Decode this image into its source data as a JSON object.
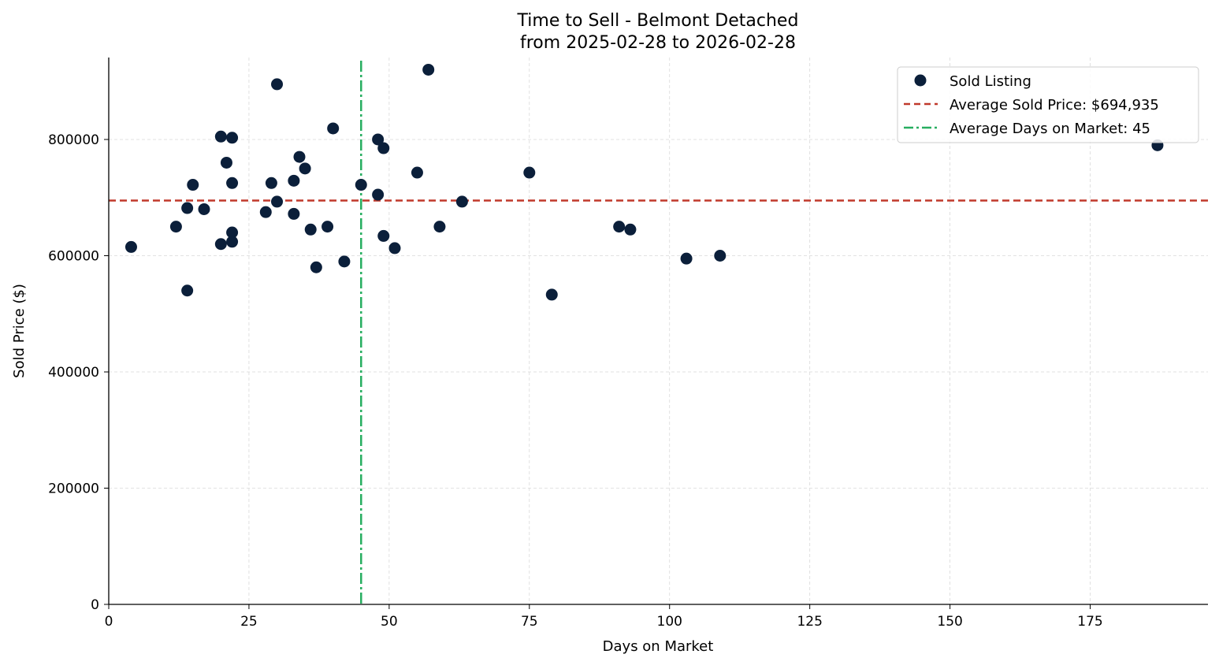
{
  "chart_data": {
    "type": "scatter",
    "title": "Time to Sell - Belmont Detached",
    "subtitle": "from 2025-02-28 to 2026-02-28",
    "xlabel": "Days on Market",
    "ylabel": "Sold Price ($)",
    "xlim": [
      0,
      196
    ],
    "ylim": [
      0,
      941000
    ],
    "xticks": [
      0,
      25,
      50,
      75,
      100,
      125,
      150,
      175
    ],
    "yticks": [
      0,
      200000,
      400000,
      600000,
      800000
    ],
    "grid": true,
    "legend_position": "top-right",
    "colors": {
      "points": "#0b1f3a",
      "avg_price": "#c0392b",
      "avg_days": "#27ae60"
    },
    "series": [
      {
        "name": "Sold Listing",
        "x": [
          4,
          12,
          14,
          14,
          15,
          17,
          20,
          20,
          21,
          22,
          22,
          22,
          22,
          28,
          29,
          30,
          30,
          33,
          33,
          34,
          35,
          36,
          37,
          39,
          40,
          42,
          45,
          48,
          48,
          49,
          49,
          51,
          55,
          57,
          59,
          63,
          75,
          79,
          91,
          93,
          103,
          109,
          187
        ],
        "y": [
          615000,
          650000,
          682000,
          540000,
          722000,
          680000,
          805000,
          620000,
          760000,
          803000,
          725000,
          640000,
          624000,
          675000,
          725000,
          895000,
          693000,
          729000,
          672000,
          770000,
          750000,
          645000,
          580000,
          650000,
          819000,
          590000,
          722000,
          800000,
          705000,
          785000,
          634000,
          613000,
          743000,
          920000,
          650000,
          693000,
          743000,
          533000,
          650000,
          645000,
          595000,
          600000,
          790000
        ]
      }
    ],
    "reference_lines": [
      {
        "name": "Average Sold Price: $694,935",
        "orientation": "horizontal",
        "value": 694935,
        "style": "dashed"
      },
      {
        "name": "Average Days on Market: 45",
        "orientation": "vertical",
        "value": 45,
        "style": "dashdot"
      }
    ]
  }
}
